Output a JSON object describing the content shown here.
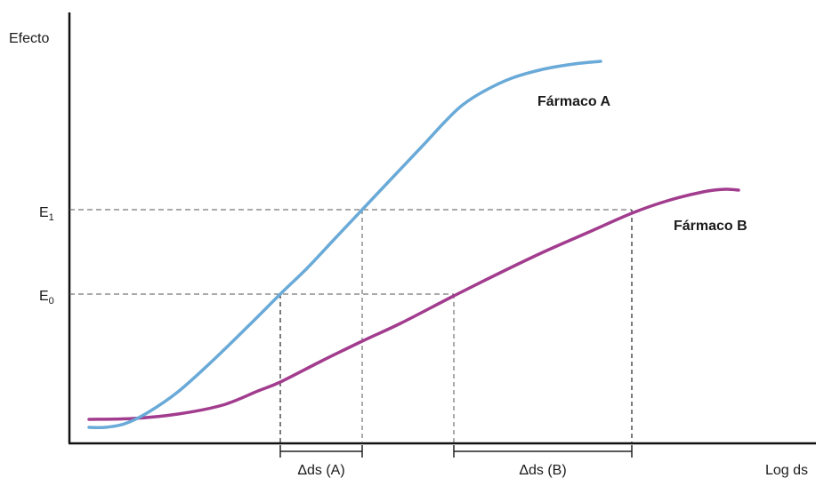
{
  "chart_data": {
    "type": "line",
    "ylabel": "Efecto",
    "xlabel": "Log ds",
    "y_ticks": [
      {
        "main": "E",
        "sub": "1"
      },
      {
        "main": "E",
        "sub": "0"
      }
    ],
    "interval_labels": [
      "Δds (A)",
      "Δds (B)"
    ],
    "series": [
      {
        "name": "Fármaco A",
        "color": "#6aaad8",
        "points": [
          [
            100,
            481
          ],
          [
            118,
            481
          ],
          [
            140,
            477
          ],
          [
            165,
            465
          ],
          [
            200,
            441
          ],
          [
            240,
            405
          ],
          [
            280,
            366
          ],
          [
            315,
            331
          ],
          [
            345,
            302
          ],
          [
            375,
            270
          ],
          [
            407,
            236
          ],
          [
            440,
            201
          ],
          [
            475,
            164
          ],
          [
            500,
            137
          ],
          [
            520,
            118
          ],
          [
            545,
            102
          ],
          [
            575,
            88
          ],
          [
            610,
            78
          ],
          [
            645,
            72
          ],
          [
            675,
            69
          ]
        ]
      },
      {
        "name": "Fármaco B",
        "color": "#a23c8e",
        "points": [
          [
            100,
            472
          ],
          [
            150,
            471
          ],
          [
            200,
            466
          ],
          [
            250,
            456
          ],
          [
            290,
            440
          ],
          [
            315,
            430
          ],
          [
            360,
            407
          ],
          [
            407,
            384
          ],
          [
            450,
            364
          ],
          [
            510,
            333
          ],
          [
            560,
            308
          ],
          [
            610,
            284
          ],
          [
            660,
            262
          ],
          [
            710,
            240
          ],
          [
            750,
            226
          ],
          [
            790,
            216
          ],
          [
            815,
            213
          ],
          [
            830,
            214
          ]
        ]
      }
    ]
  }
}
